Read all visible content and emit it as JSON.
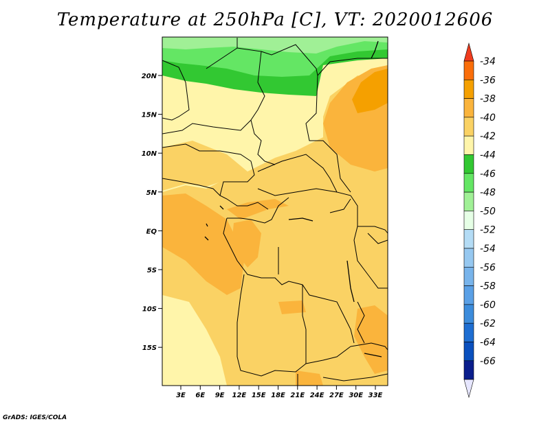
{
  "title": "Temperature at 250hPa [C], VT: 2020012606",
  "credit": "GrADS: IGES/COLA",
  "map": {
    "lat_ticks": [
      "20N",
      "15N",
      "10N",
      "5N",
      "EQ",
      "5S",
      "10S",
      "15S"
    ],
    "lon_ticks": [
      "3E",
      "6E",
      "9E",
      "12E",
      "15E",
      "18E",
      "21E",
      "24E",
      "27E",
      "30E",
      "33E"
    ]
  },
  "colorbar": {
    "labels": [
      "-34",
      "-36",
      "-38",
      "-40",
      "-42",
      "-44",
      "-46",
      "-48",
      "-50",
      "-52",
      "-54",
      "-56",
      "-58",
      "-60",
      "-62",
      "-64",
      "-66"
    ],
    "colors": {
      "top_arrow": "#f03c1e",
      "bins": [
        "#fa6e0a",
        "#f5a000",
        "#fab43c",
        "#fad264",
        "#fff5aa",
        "#32c832",
        "#64e664",
        "#a0f096",
        "#e6ffe6",
        "#b4dcf5",
        "#96c8f0",
        "#78b4eb",
        "#5aa0e6",
        "#3c8cdc",
        "#1e6ed2",
        "#0a50be",
        "#0a1e8c"
      ],
      "bottom_arrow": "#e6e6ff"
    }
  }
}
